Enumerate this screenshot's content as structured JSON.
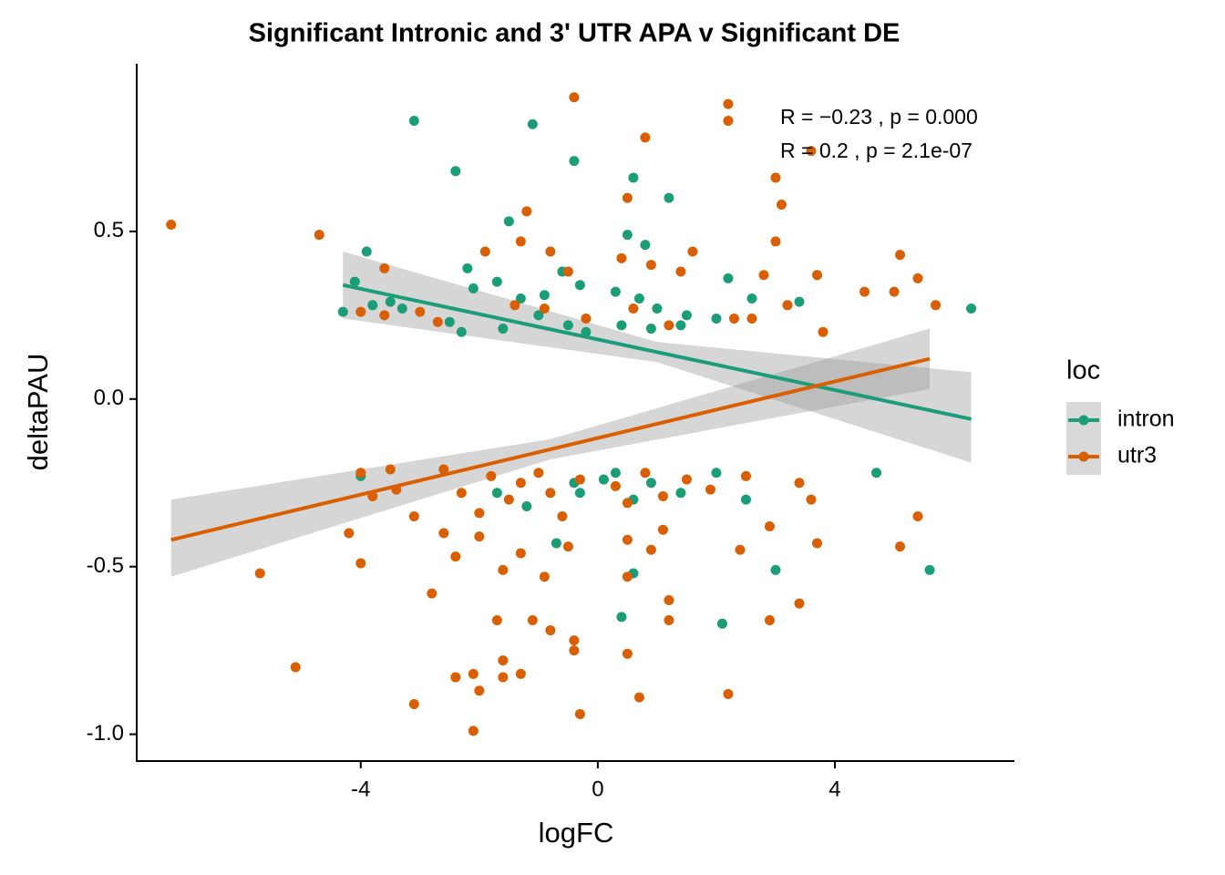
{
  "chart_data": {
    "type": "scatter",
    "title": "Significant Intronic and 3' UTR APA v Significant DE",
    "x_label": "logFC",
    "y_label": "deltaPAU",
    "legend_title": "loc",
    "xlim": [
      -7.78,
      7.03
    ],
    "ylim": [
      -1.08,
      1.0
    ],
    "xticks": [
      -4,
      0,
      4
    ],
    "yticks": [
      {
        "value": -1.0,
        "label": "-1.0"
      },
      -0.5,
      {
        "value": 0.0,
        "label": "0.0"
      },
      0.5
    ],
    "annotations": [
      {
        "text": "R = −0.23 , p = 0.000",
        "color": "#1b9e77"
      },
      {
        "text": "R = 0.2 , p = 2.1e-07",
        "color": "#d95f02"
      }
    ],
    "series": [
      {
        "name": "intron",
        "color": "#1b9e77",
        "x": [
          -3.1,
          -1.1,
          -0.4,
          -2.4,
          0.6,
          1.2,
          -1.5,
          0.5,
          0.8,
          -3.9,
          -2.2,
          -1.7,
          -0.6,
          -4.1,
          -2.1,
          -1.3,
          -0.9,
          -0.3,
          0.3,
          0.7,
          1.0,
          1.5,
          2.2,
          2.6,
          3.4,
          -4.3,
          -3.8,
          -3.5,
          -3.3,
          -2.5,
          -2.3,
          -1.6,
          -1.0,
          -0.5,
          -0.2,
          0.4,
          0.9,
          1.4,
          2.0,
          6.3,
          -4.0,
          -1.7,
          -1.2,
          -0.7,
          -0.4,
          0.3,
          0.6,
          0.9,
          1.4,
          2.0,
          2.5,
          4.7,
          3.0,
          0.6,
          5.6,
          0.4,
          2.1,
          -0.3,
          0.1
        ],
        "y": [
          0.83,
          0.82,
          0.71,
          0.68,
          0.66,
          0.6,
          0.53,
          0.49,
          0.46,
          0.44,
          0.39,
          0.35,
          0.38,
          0.35,
          0.33,
          0.3,
          0.31,
          0.34,
          0.32,
          0.3,
          0.27,
          0.25,
          0.36,
          0.3,
          0.29,
          0.26,
          0.28,
          0.29,
          0.27,
          0.23,
          0.2,
          0.21,
          0.25,
          0.22,
          0.2,
          0.22,
          0.21,
          0.22,
          0.24,
          0.27,
          -0.23,
          -0.28,
          -0.32,
          -0.43,
          -0.25,
          -0.22,
          -0.3,
          -0.25,
          -0.28,
          -0.22,
          -0.3,
          -0.22,
          -0.51,
          -0.52,
          -0.51,
          -0.65,
          -0.67,
          -0.28,
          -0.24
        ],
        "fit": {
          "x": [
            -4.3,
            6.3
          ],
          "y": [
            0.34,
            -0.06
          ]
        },
        "band": {
          "x": [
            -4.3,
            1.0,
            6.3
          ],
          "upper": [
            0.44,
            0.17,
            0.08
          ],
          "lower": [
            0.24,
            0.11,
            -0.19
          ]
        }
      },
      {
        "name": "utr3",
        "color": "#d95f02",
        "x": [
          -7.2,
          -4.7,
          -0.4,
          2.2,
          2.2,
          0.8,
          3.6,
          3.0,
          0.5,
          3.1,
          -1.2,
          -1.3,
          -0.8,
          0.4,
          1.6,
          3.0,
          5.1,
          -3.6,
          -1.9,
          -0.5,
          0.9,
          1.4,
          2.8,
          3.7,
          4.5,
          5.0,
          5.4,
          5.7,
          -4.0,
          -3.6,
          -3.0,
          -2.7,
          -1.4,
          -0.9,
          -0.2,
          0.6,
          1.2,
          2.3,
          2.6,
          3.2,
          3.8,
          -4.0,
          -3.8,
          -3.5,
          -3.4,
          -3.1,
          -2.6,
          -2.3,
          -2.0,
          -1.8,
          -1.5,
          -1.3,
          -1.0,
          -0.8,
          -0.6,
          -0.3,
          0.3,
          0.5,
          0.8,
          1.1,
          1.5,
          1.9,
          2.5,
          3.4,
          3.6,
          -4.2,
          -4.0,
          -2.6,
          -2.4,
          -2.0,
          -1.6,
          -1.3,
          -0.9,
          -0.5,
          0.5,
          0.9,
          1.1,
          2.4,
          2.9,
          3.7,
          5.1,
          5.4,
          -5.7,
          -2.8,
          -1.7,
          -1.1,
          -0.8,
          -0.4,
          0.5,
          1.2,
          1.2,
          2.9,
          3.4,
          -5.1,
          -3.1,
          -2.4,
          -2.1,
          -2.0,
          -1.6,
          -1.6,
          -1.3,
          -0.3,
          0.7,
          2.2,
          -2.1,
          0.5,
          -0.4
        ],
        "y": [
          0.52,
          0.49,
          0.9,
          0.88,
          0.83,
          0.78,
          0.74,
          0.66,
          0.6,
          0.58,
          0.56,
          0.47,
          0.44,
          0.42,
          0.44,
          0.47,
          0.43,
          0.39,
          0.44,
          0.38,
          0.4,
          0.38,
          0.37,
          0.37,
          0.32,
          0.32,
          0.36,
          0.28,
          0.26,
          0.25,
          0.26,
          0.23,
          0.28,
          0.27,
          0.24,
          0.27,
          0.22,
          0.24,
          0.24,
          0.28,
          0.2,
          -0.22,
          -0.29,
          -0.21,
          -0.27,
          -0.35,
          -0.21,
          -0.28,
          -0.34,
          -0.23,
          -0.3,
          -0.25,
          -0.22,
          -0.28,
          -0.35,
          -0.24,
          -0.26,
          -0.31,
          -0.22,
          -0.29,
          -0.24,
          -0.27,
          -0.23,
          -0.25,
          -0.3,
          -0.4,
          -0.49,
          -0.4,
          -0.47,
          -0.41,
          -0.51,
          -0.46,
          -0.53,
          -0.44,
          -0.42,
          -0.45,
          -0.39,
          -0.45,
          -0.38,
          -0.43,
          -0.44,
          -0.35,
          -0.52,
          -0.58,
          -0.66,
          -0.66,
          -0.69,
          -0.72,
          -0.53,
          -0.6,
          -0.66,
          -0.66,
          -0.61,
          -0.8,
          -0.91,
          -0.83,
          -0.82,
          -0.87,
          -0.78,
          -0.83,
          -0.82,
          -0.94,
          -0.89,
          -0.88,
          -0.99,
          -0.76,
          -0.75
        ],
        "fit": {
          "x": [
            -7.2,
            5.6
          ],
          "y": [
            -0.42,
            0.12
          ]
        },
        "band": {
          "x": [
            -7.2,
            -0.8,
            5.6
          ],
          "upper": [
            -0.3,
            -0.12,
            0.21
          ],
          "lower": [
            -0.53,
            -0.18,
            0.03
          ]
        }
      }
    ]
  }
}
